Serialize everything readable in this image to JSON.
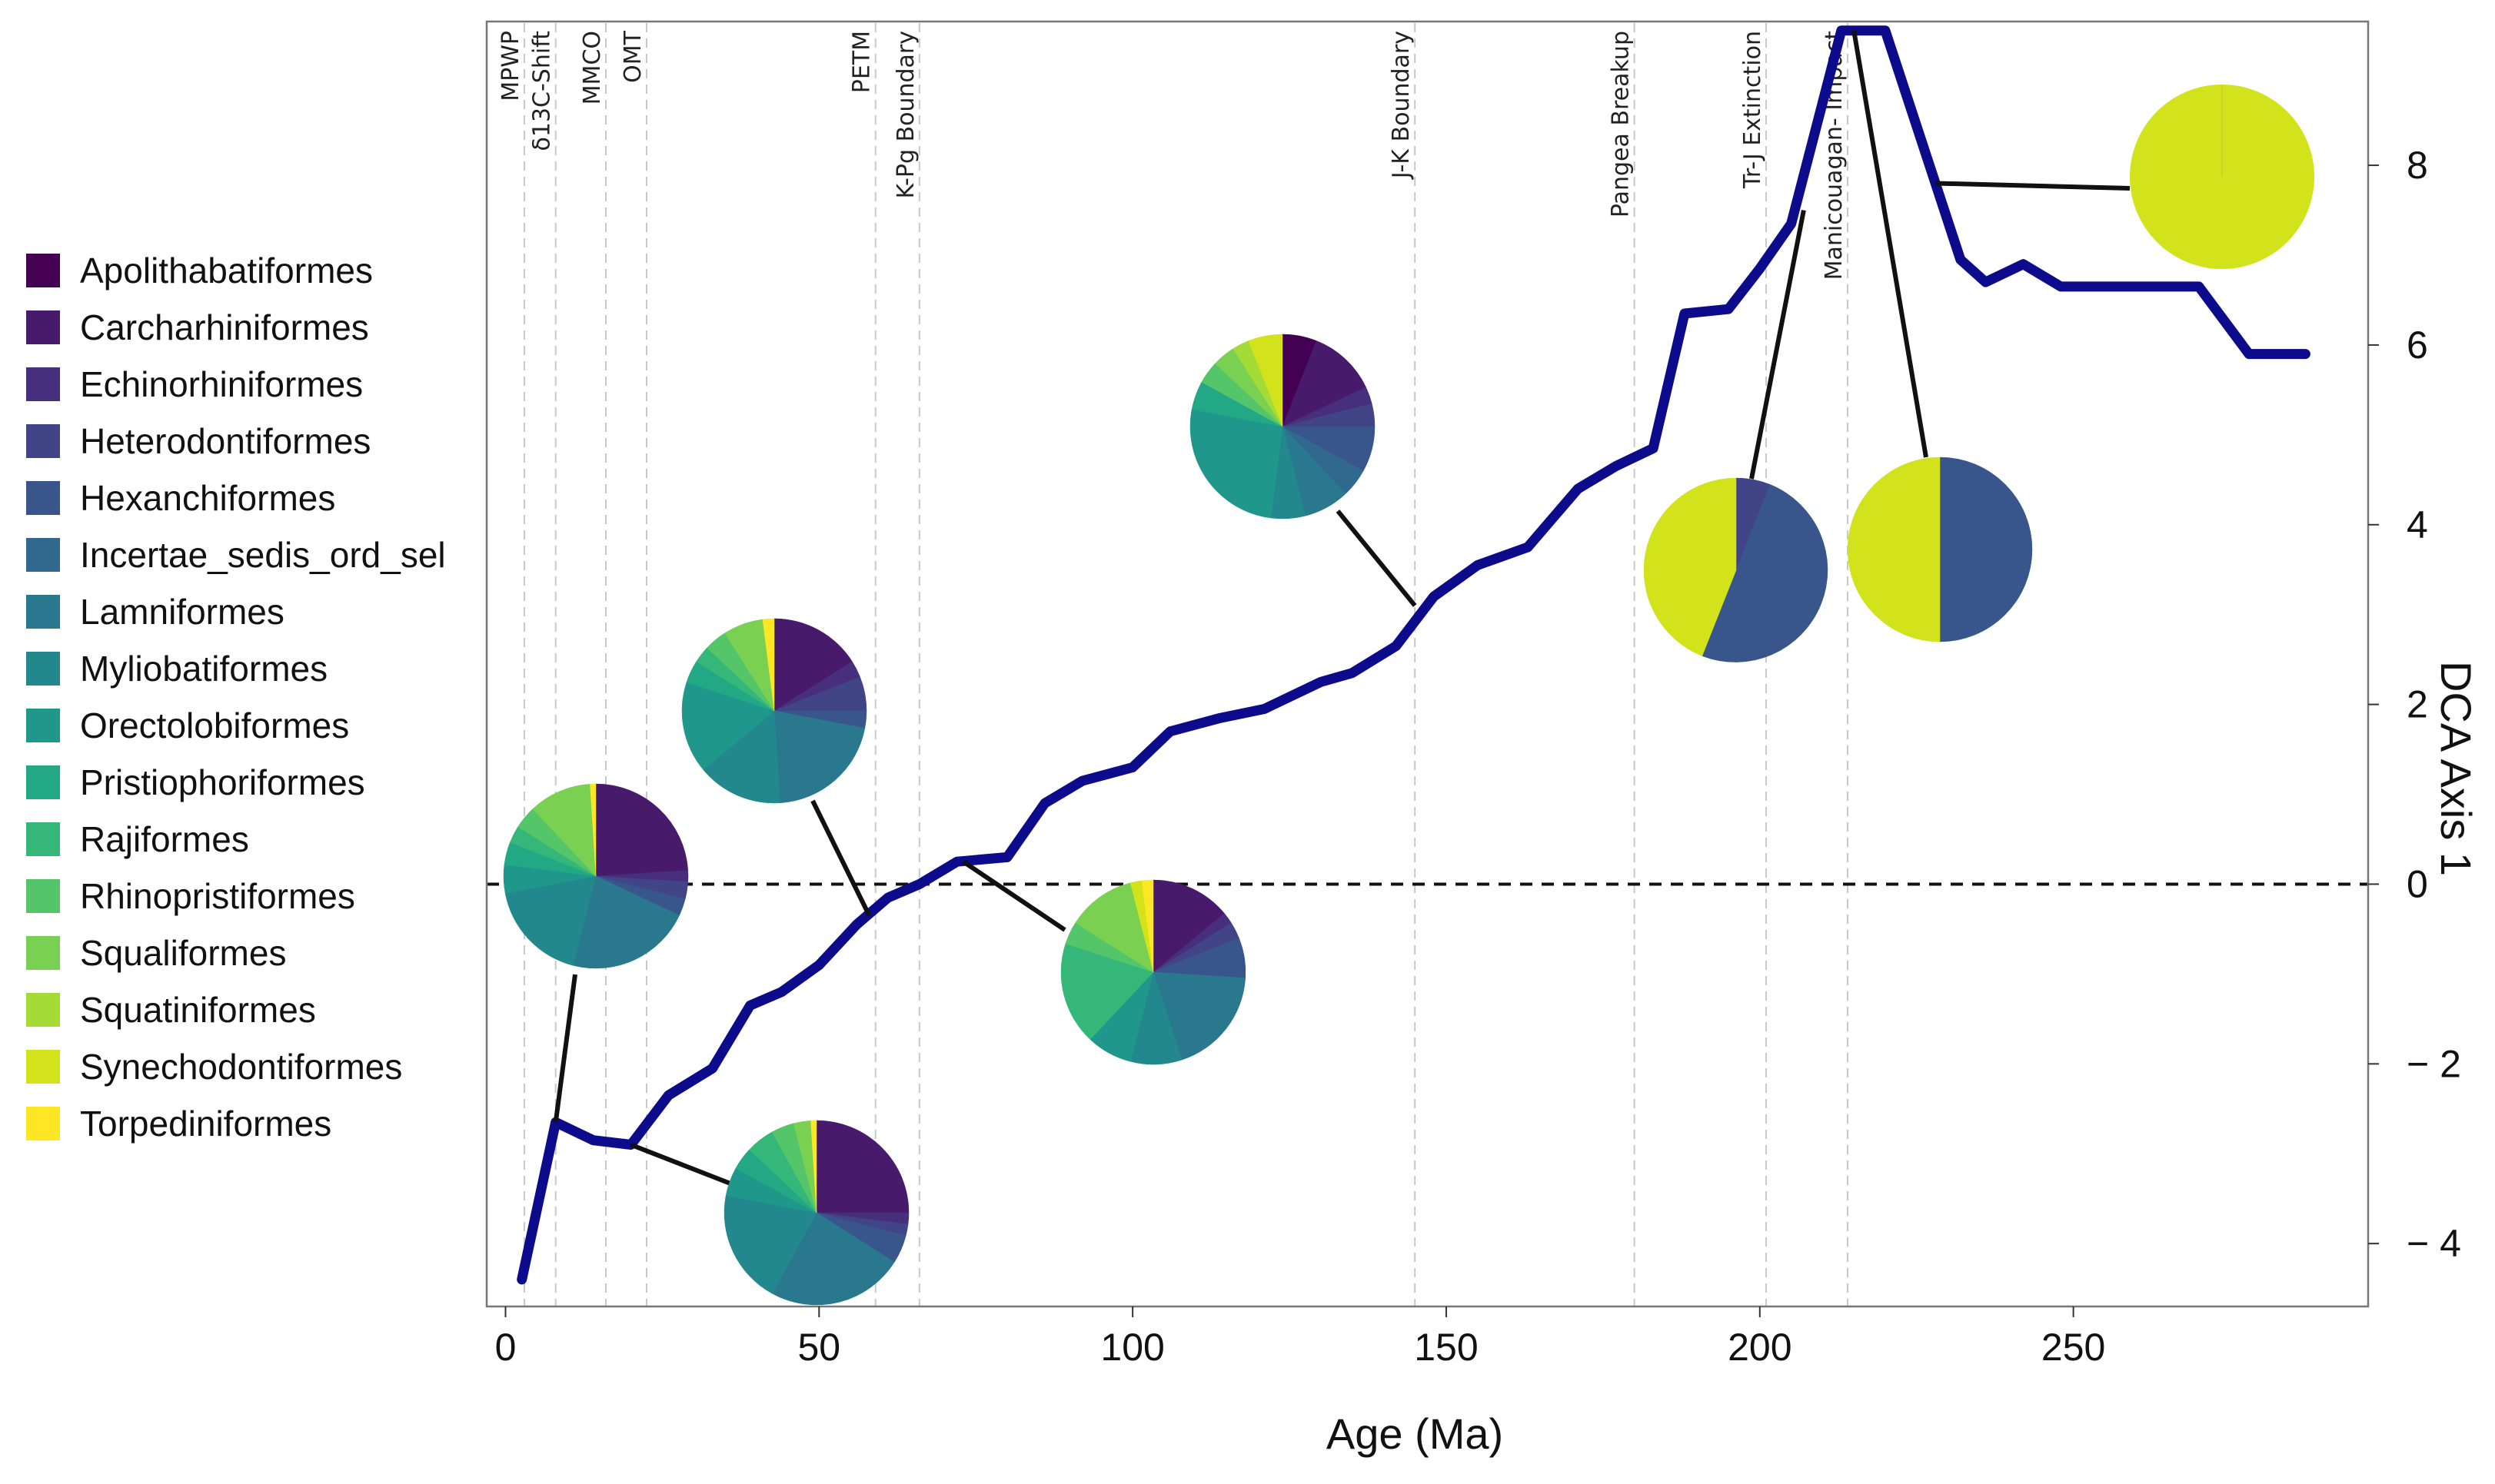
{
  "chart_data": {
    "type": "line",
    "title": "",
    "xlabel": "Age (Ma)",
    "ylabel": "DCA Axis 1",
    "xlim": [
      -3,
      297
    ],
    "ylim": [
      -4.7,
      9.6
    ],
    "x_ticks": [
      0,
      50,
      100,
      150,
      200,
      250
    ],
    "x_tick_labels": [
      "0",
      "50",
      "100",
      "150",
      "200",
      "250"
    ],
    "y_ticks": [
      -4,
      -2,
      0,
      2,
      4,
      6,
      8
    ],
    "y_tick_labels": [
      "− 4",
      "− 2",
      "0",
      "2",
      "4",
      "6",
      "8"
    ],
    "y_axis_side": "right",
    "reference_line": {
      "y": 0,
      "style": "dashed"
    },
    "series": [
      {
        "name": "DCA Axis 1",
        "color": "#0b0b8c",
        "x": [
          2.6,
          8,
          14,
          20,
          26,
          33,
          39,
          44,
          50,
          56,
          61,
          66,
          72,
          80,
          86,
          92,
          100,
          106,
          114,
          121,
          130,
          135,
          142,
          148,
          155,
          163,
          171,
          177,
          183,
          188,
          195,
          200,
          205,
          213,
          220,
          228,
          232,
          236,
          242,
          248,
          255,
          270,
          278,
          287
        ],
        "y": [
          -4.4,
          -2.65,
          -2.85,
          -2.9,
          -2.35,
          -2.05,
          -1.35,
          -1.2,
          -0.9,
          -0.45,
          -0.15,
          0.0,
          0.25,
          0.3,
          0.9,
          1.15,
          1.3,
          1.7,
          1.85,
          1.95,
          2.25,
          2.35,
          2.65,
          3.2,
          3.55,
          3.75,
          4.4,
          4.65,
          4.85,
          6.35,
          6.4,
          6.85,
          7.35,
          9.5,
          9.5,
          7.8,
          6.95,
          6.7,
          6.9,
          6.65,
          6.65,
          6.65,
          5.9,
          5.9
        ]
      }
    ],
    "events": [
      {
        "label": "MPWP",
        "x": 3
      },
      {
        "label": "δ13C-Shift",
        "x": 8
      },
      {
        "label": "MMCO",
        "x": 16
      },
      {
        "label": "OMT",
        "x": 22.5
      },
      {
        "label": "PETM",
        "x": 59
      },
      {
        "label": "K-Pg Boundary",
        "x": 66
      },
      {
        "label": "J-K Boundary",
        "x": 145
      },
      {
        "label": "Pangea Breakup",
        "x": 180
      },
      {
        "label": "Tr-J Extinction",
        "x": 201
      },
      {
        "label": "Manicouagan- Impact",
        "x": 214
      }
    ],
    "legend": {
      "placement": "left",
      "entries": [
        {
          "label": "Apolithabatiformes",
          "color": "#440154"
        },
        {
          "label": "Carcharhiniformes",
          "color": "#481a6c"
        },
        {
          "label": "Echinorhiniformes",
          "color": "#472f7d"
        },
        {
          "label": "Heterodontiformes",
          "color": "#414487"
        },
        {
          "label": "Hexanchiformes",
          "color": "#39568c"
        },
        {
          "label": "Incertae_sedis_ord_sel",
          "color": "#31688e"
        },
        {
          "label": "Lamniformes",
          "color": "#2a788e"
        },
        {
          "label": "Myliobatiformes",
          "color": "#23888e"
        },
        {
          "label": "Orectolobiformes",
          "color": "#1f988b"
        },
        {
          "label": "Pristiophoriformes",
          "color": "#22a884"
        },
        {
          "label": "Rajiformes",
          "color": "#35b779"
        },
        {
          "label": "Rhinopristiformes",
          "color": "#54c568"
        },
        {
          "label": "Squaliformes",
          "color": "#7ad151"
        },
        {
          "label": "Squatiniformes",
          "color": "#a5db36"
        },
        {
          "label": "Synechodontiformes",
          "color": "#d2e21b"
        },
        {
          "label": "Torpediniformes",
          "color": "#fde725"
        }
      ]
    },
    "pies": [
      {
        "name": "pie-1",
        "anchor_x": 8,
        "anchor_y": -2.65,
        "slices": [
          {
            "order": "Carcharhiniformes",
            "value": 24
          },
          {
            "order": "Echinorhiniformes",
            "value": 2
          },
          {
            "order": "Heterodontiformes",
            "value": 3
          },
          {
            "order": "Hexanchiformes",
            "value": 3
          },
          {
            "order": "Lamniformes",
            "value": 22
          },
          {
            "order": "Myliobatiformes",
            "value": 18
          },
          {
            "order": "Orectolobiformes",
            "value": 5
          },
          {
            "order": "Pristiophoriformes",
            "value": 4
          },
          {
            "order": "Rajiformes",
            "value": 3
          },
          {
            "order": "Rhinopristiformes",
            "value": 4
          },
          {
            "order": "Squaliformes",
            "value": 11
          },
          {
            "order": "Torpediniformes",
            "value": 1
          }
        ]
      },
      {
        "name": "pie-2",
        "anchor_x": 20,
        "anchor_y": -2.9,
        "slices": [
          {
            "order": "Carcharhiniformes",
            "value": 25
          },
          {
            "order": "Echinorhiniformes",
            "value": 2
          },
          {
            "order": "Heterodontiformes",
            "value": 2
          },
          {
            "order": "Hexanchiformes",
            "value": 5
          },
          {
            "order": "Lamniformes",
            "value": 24
          },
          {
            "order": "Myliobatiformes",
            "value": 20
          },
          {
            "order": "Orectolobiformes",
            "value": 5
          },
          {
            "order": "Pristiophoriformes",
            "value": 4
          },
          {
            "order": "Rajiformes",
            "value": 5
          },
          {
            "order": "Rhinopristiformes",
            "value": 4
          },
          {
            "order": "Squaliformes",
            "value": 3
          },
          {
            "order": "Torpediniformes",
            "value": 1
          }
        ]
      },
      {
        "name": "pie-3",
        "anchor_x": 58,
        "anchor_y": -0.35,
        "slices": [
          {
            "order": "Carcharhiniformes",
            "value": 16
          },
          {
            "order": "Echinorhiniformes",
            "value": 3
          },
          {
            "order": "Heterodontiformes",
            "value": 6
          },
          {
            "order": "Hexanchiformes",
            "value": 3
          },
          {
            "order": "Lamniformes",
            "value": 21
          },
          {
            "order": "Myliobatiformes",
            "value": 15
          },
          {
            "order": "Orectolobiformes",
            "value": 16
          },
          {
            "order": "Pristiophoriformes",
            "value": 4
          },
          {
            "order": "Rajiformes",
            "value": 3
          },
          {
            "order": "Rhinopristiformes",
            "value": 4
          },
          {
            "order": "Squaliformes",
            "value": 7
          },
          {
            "order": "Torpediniformes",
            "value": 2
          }
        ]
      },
      {
        "name": "pie-4",
        "anchor_x": 73,
        "anchor_y": 0.25,
        "slices": [
          {
            "order": "Carcharhiniformes",
            "value": 14
          },
          {
            "order": "Echinorhiniformes",
            "value": 2
          },
          {
            "order": "Heterodontiformes",
            "value": 3
          },
          {
            "order": "Hexanchiformes",
            "value": 7
          },
          {
            "order": "Lamniformes",
            "value": 19
          },
          {
            "order": "Myliobatiformes",
            "value": 9
          },
          {
            "order": "Orectolobiformes",
            "value": 8
          },
          {
            "order": "Rajiformes",
            "value": 18
          },
          {
            "order": "Rhinopristiformes",
            "value": 4
          },
          {
            "order": "Squaliformes",
            "value": 12
          },
          {
            "order": "Synechodontiformes",
            "value": 2
          },
          {
            "order": "Torpediniformes",
            "value": 2
          }
        ]
      },
      {
        "name": "pie-5",
        "anchor_x": 145,
        "anchor_y": 3.1,
        "slices": [
          {
            "order": "Apolithabatiformes",
            "value": 6
          },
          {
            "order": "Carcharhiniformes",
            "value": 12
          },
          {
            "order": "Echinorhiniformes",
            "value": 3
          },
          {
            "order": "Heterodontiformes",
            "value": 4
          },
          {
            "order": "Hexanchiformes",
            "value": 8
          },
          {
            "order": "Incertae_sedis_ord_sel",
            "value": 5
          },
          {
            "order": "Lamniformes",
            "value": 8
          },
          {
            "order": "Myliobatiformes",
            "value": 6
          },
          {
            "order": "Orectolobiformes",
            "value": 26
          },
          {
            "order": "Pristiophoriformes",
            "value": 5
          },
          {
            "order": "Rhinopristiformes",
            "value": 4
          },
          {
            "order": "Squaliformes",
            "value": 4
          },
          {
            "order": "Squatiniformes",
            "value": 3
          },
          {
            "order": "Synechodontiformes",
            "value": 6
          }
        ]
      },
      {
        "name": "pie-6",
        "anchor_x": 207,
        "anchor_y": 7.5,
        "slices": [
          {
            "order": "Heterodontiformes",
            "value": 6
          },
          {
            "order": "Hexanchiformes",
            "value": 50
          },
          {
            "order": "Synechodontiformes",
            "value": 44
          }
        ]
      },
      {
        "name": "pie-7",
        "anchor_x": 215,
        "anchor_y": 9.5,
        "slices": [
          {
            "order": "Hexanchiformes",
            "value": 50
          },
          {
            "order": "Synechodontiformes",
            "value": 50
          }
        ]
      },
      {
        "name": "pie-8",
        "anchor_x": 228,
        "anchor_y": 7.8,
        "slices": [
          {
            "order": "Synechodontiformes",
            "value": 100
          }
        ]
      }
    ]
  }
}
